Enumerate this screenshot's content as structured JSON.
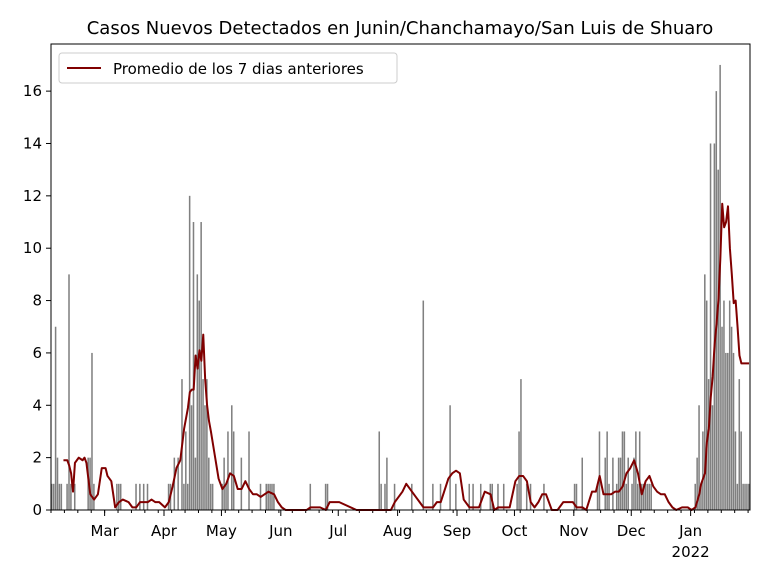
{
  "chart_data": {
    "type": "bar",
    "title": "Casos Nuevos Detectados en Junin/Chanchamayo/San Luis de Shuaro",
    "xlabel": "",
    "ylabel": "",
    "ylim": [
      0,
      17.8
    ],
    "yticks": [
      "0",
      "2",
      "4",
      "6",
      "8",
      "10",
      "12",
      "14",
      "16"
    ],
    "xtick_labels": [
      {
        "date": "2021-03-01",
        "label": "Mar"
      },
      {
        "date": "2021-04-01",
        "label": "Apr"
      },
      {
        "date": "2021-05-01",
        "label": "May"
      },
      {
        "date": "2021-06-01",
        "label": "Jun"
      },
      {
        "date": "2021-07-01",
        "label": "Jul"
      },
      {
        "date": "2021-08-01",
        "label": "Aug"
      },
      {
        "date": "2021-09-01",
        "label": "Sep"
      },
      {
        "date": "2021-10-01",
        "label": "Oct"
      },
      {
        "date": "2021-11-01",
        "label": "Nov"
      },
      {
        "date": "2021-12-01",
        "label": "Dec"
      },
      {
        "date": "2022-01-01",
        "label": "Jan"
      }
    ],
    "year_label": "2022",
    "x_start": "2021-02-01",
    "x_end": "2022-01-31",
    "grid": false,
    "legend_position": "top-left",
    "bar_color": "#808080",
    "line_color": "#800000",
    "series": [
      {
        "type": "bar",
        "x": [
          "2021-02-01",
          "2021-02-02",
          "2021-02-03",
          "2021-02-04",
          "2021-02-05",
          "2021-02-06",
          "2021-02-09",
          "2021-02-10",
          "2021-02-11",
          "2021-02-13",
          "2021-02-20",
          "2021-02-21",
          "2021-02-22",
          "2021-02-23",
          "2021-03-07",
          "2021-03-08",
          "2021-03-09",
          "2021-03-17",
          "2021-03-19",
          "2021-03-21",
          "2021-03-23",
          "2021-04-03",
          "2021-04-04",
          "2021-04-06",
          "2021-04-08",
          "2021-04-10",
          "2021-04-11",
          "2021-04-12",
          "2021-04-13",
          "2021-04-14",
          "2021-04-15",
          "2021-04-16",
          "2021-04-17",
          "2021-04-18",
          "2021-04-19",
          "2021-04-20",
          "2021-04-21",
          "2021-04-22",
          "2021-04-23",
          "2021-04-24",
          "2021-04-25",
          "2021-04-26",
          "2021-05-01",
          "2021-05-02",
          "2021-05-03",
          "2021-05-04",
          "2021-05-06",
          "2021-05-07",
          "2021-05-11",
          "2021-05-15",
          "2021-05-21",
          "2021-05-24",
          "2021-05-25",
          "2021-05-26",
          "2021-05-27",
          "2021-05-28",
          "2021-06-16",
          "2021-06-24",
          "2021-06-25",
          "2021-07-22",
          "2021-07-23",
          "2021-07-25",
          "2021-07-26",
          "2021-07-30",
          "2021-08-08",
          "2021-08-14",
          "2021-08-19",
          "2021-08-23",
          "2021-08-28",
          "2021-08-31",
          "2021-09-07",
          "2021-09-09",
          "2021-09-13",
          "2021-09-18",
          "2021-09-19",
          "2021-09-22",
          "2021-09-25",
          "2021-10-02",
          "2021-10-03",
          "2021-10-04",
          "2021-10-07",
          "2021-10-09",
          "2021-10-16",
          "2021-11-01",
          "2021-11-02",
          "2021-11-05",
          "2021-11-13",
          "2021-11-14",
          "2021-11-17",
          "2021-11-18",
          "2021-11-19",
          "2021-11-21",
          "2021-11-23",
          "2021-11-24",
          "2021-11-25",
          "2021-11-26",
          "2021-11-27",
          "2021-11-28",
          "2021-11-29",
          "2021-12-01",
          "2021-12-02",
          "2021-12-03",
          "2021-12-04",
          "2021-12-05",
          "2021-12-06",
          "2021-12-07",
          "2021-12-08",
          "2021-12-09",
          "2021-12-10",
          "2021-12-11",
          "2022-01-03",
          "2022-01-04",
          "2022-01-05",
          "2022-01-06",
          "2022-01-07",
          "2022-01-08",
          "2022-01-09",
          "2022-01-10",
          "2022-01-11",
          "2022-01-12",
          "2022-01-13",
          "2022-01-14",
          "2022-01-15",
          "2022-01-16",
          "2022-01-17",
          "2022-01-18",
          "2022-01-19",
          "2022-01-20",
          "2022-01-21",
          "2022-01-22",
          "2022-01-23",
          "2022-01-24",
          "2022-01-25",
          "2022-01-26",
          "2022-01-27",
          "2022-01-28",
          "2022-01-29",
          "2022-01-30",
          "2022-01-31"
        ],
        "values": [
          1,
          1,
          7,
          2,
          1,
          1,
          1,
          9,
          1,
          1,
          2,
          2,
          6,
          1,
          1,
          1,
          1,
          1,
          1,
          1,
          1,
          1,
          1,
          2,
          2,
          5,
          1,
          3,
          1,
          12,
          4,
          11,
          2,
          9,
          8,
          11,
          5,
          4,
          5,
          2,
          1,
          1,
          1,
          2,
          1,
          3,
          4,
          3,
          2,
          3,
          1,
          1,
          1,
          1,
          1,
          1,
          1,
          1,
          1,
          3,
          1,
          1,
          2,
          1,
          1,
          8,
          1,
          1,
          4,
          1,
          1,
          1,
          1,
          1,
          1,
          1,
          1,
          1,
          3,
          5,
          1,
          1,
          1,
          1,
          1,
          2,
          1,
          3,
          2,
          3,
          1,
          2,
          1,
          2,
          2,
          3,
          3,
          1,
          2,
          1,
          2,
          3,
          1,
          3,
          1,
          1,
          1,
          1,
          1,
          1,
          1,
          2,
          4,
          1,
          3,
          9,
          8,
          5,
          14,
          4,
          14,
          16,
          13,
          17,
          7,
          8,
          6,
          6,
          8,
          7,
          6,
          3,
          1,
          5,
          3,
          1,
          1,
          1,
          1
        ]
      },
      {
        "type": "line",
        "name": "Promedio de los 7 dias anteriores",
        "x": [
          "2021-02-07",
          "2021-02-09",
          "2021-02-10",
          "2021-02-11",
          "2021-02-12",
          "2021-02-13",
          "2021-02-14",
          "2021-02-15",
          "2021-02-17",
          "2021-02-18",
          "2021-02-19",
          "2021-02-21",
          "2021-02-23",
          "2021-02-25",
          "2021-02-27",
          "2021-03-01",
          "2021-03-02",
          "2021-03-04",
          "2021-03-06",
          "2021-03-08",
          "2021-03-10",
          "2021-03-13",
          "2021-03-15",
          "2021-03-17",
          "2021-03-19",
          "2021-03-21",
          "2021-03-23",
          "2021-03-25",
          "2021-03-27",
          "2021-03-29",
          "2021-04-01",
          "2021-04-03",
          "2021-04-05",
          "2021-04-07",
          "2021-04-09",
          "2021-04-11",
          "2021-04-13",
          "2021-04-14",
          "2021-04-15",
          "2021-04-16",
          "2021-04-17",
          "2021-04-18",
          "2021-04-19",
          "2021-04-20",
          "2021-04-21",
          "2021-04-22",
          "2021-04-23",
          "2021-04-24",
          "2021-04-25",
          "2021-04-27",
          "2021-04-29",
          "2021-05-01",
          "2021-05-03",
          "2021-05-05",
          "2021-05-07",
          "2021-05-09",
          "2021-05-11",
          "2021-05-13",
          "2021-05-15",
          "2021-05-17",
          "2021-05-19",
          "2021-05-21",
          "2021-05-23",
          "2021-05-25",
          "2021-05-28",
          "2021-05-30",
          "2021-06-01",
          "2021-06-03",
          "2021-06-05",
          "2021-06-07",
          "2021-06-14",
          "2021-06-16",
          "2021-06-19",
          "2021-06-21",
          "2021-06-24",
          "2021-06-26",
          "2021-06-28",
          "2021-07-01",
          "2021-07-10",
          "2021-07-20",
          "2021-07-22",
          "2021-07-24",
          "2021-07-26",
          "2021-07-28",
          "2021-07-30",
          "2021-08-01",
          "2021-08-03",
          "2021-08-05",
          "2021-08-08",
          "2021-08-10",
          "2021-08-12",
          "2021-08-14",
          "2021-08-15",
          "2021-08-17",
          "2021-08-19",
          "2021-08-21",
          "2021-08-23",
          "2021-08-27",
          "2021-08-29",
          "2021-08-31",
          "2021-09-02",
          "2021-09-04",
          "2021-09-07",
          "2021-09-09",
          "2021-09-12",
          "2021-09-15",
          "2021-09-18",
          "2021-09-20",
          "2021-09-22",
          "2021-09-24",
          "2021-09-26",
          "2021-09-28",
          "2021-10-01",
          "2021-10-03",
          "2021-10-05",
          "2021-10-07",
          "2021-10-09",
          "2021-10-11",
          "2021-10-13",
          "2021-10-15",
          "2021-10-17",
          "2021-10-20",
          "2021-10-23",
          "2021-10-26",
          "2021-10-28",
          "2021-10-31",
          "2021-11-02",
          "2021-11-05",
          "2021-11-07",
          "2021-11-10",
          "2021-11-12",
          "2021-11-14",
          "2021-11-16",
          "2021-11-18",
          "2021-11-20",
          "2021-11-22",
          "2021-11-24",
          "2021-11-26",
          "2021-11-28",
          "2021-11-30",
          "2021-12-02",
          "2021-12-04",
          "2021-12-06",
          "2021-12-08",
          "2021-12-10",
          "2021-12-12",
          "2021-12-14",
          "2021-12-16",
          "2021-12-18",
          "2021-12-20",
          "2021-12-22",
          "2021-12-24",
          "2021-12-27",
          "2021-12-30",
          "2022-01-01",
          "2022-01-03",
          "2022-01-05",
          "2022-01-06",
          "2022-01-08",
          "2022-01-09",
          "2022-01-10",
          "2022-01-11",
          "2022-01-12",
          "2022-01-13",
          "2022-01-14",
          "2022-01-15",
          "2022-01-16",
          "2022-01-17",
          "2022-01-18",
          "2022-01-19",
          "2022-01-20",
          "2022-01-21",
          "2022-01-22",
          "2022-01-23",
          "2022-01-24",
          "2022-01-25",
          "2022-01-26",
          "2022-01-27",
          "2022-01-28",
          "2022-01-29",
          "2022-01-30",
          "2022-01-31"
        ],
        "values": [
          1.9,
          1.9,
          1.7,
          1.4,
          0.7,
          1.8,
          1.9,
          2.0,
          1.9,
          2.0,
          1.8,
          0.6,
          0.4,
          0.6,
          1.6,
          1.6,
          1.3,
          1.1,
          0.1,
          0.3,
          0.4,
          0.3,
          0.1,
          0.1,
          0.3,
          0.3,
          0.3,
          0.4,
          0.3,
          0.3,
          0.1,
          0.3,
          0.9,
          1.6,
          1.9,
          3.1,
          3.9,
          4.5,
          4.6,
          4.6,
          5.9,
          5.4,
          6.1,
          5.7,
          6.7,
          5.0,
          4.0,
          3.4,
          3.0,
          2.1,
          1.2,
          0.8,
          1.0,
          1.4,
          1.3,
          0.8,
          0.8,
          1.1,
          0.8,
          0.6,
          0.6,
          0.5,
          0.6,
          0.7,
          0.6,
          0.3,
          0.1,
          0.0,
          0.0,
          0.0,
          0.0,
          0.1,
          0.1,
          0.1,
          0.0,
          0.3,
          0.3,
          0.3,
          0.0,
          0.0,
          0.0,
          0.0,
          0.0,
          0.0,
          0.3,
          0.5,
          0.7,
          1.0,
          0.7,
          0.5,
          0.3,
          0.1,
          0.1,
          0.1,
          0.1,
          0.3,
          0.3,
          1.2,
          1.4,
          1.5,
          1.4,
          0.4,
          0.1,
          0.1,
          0.1,
          0.7,
          0.6,
          0.0,
          0.1,
          0.1,
          0.1,
          0.1,
          1.1,
          1.3,
          1.3,
          1.1,
          0.3,
          0.1,
          0.3,
          0.6,
          0.6,
          0.0,
          0.0,
          0.3,
          0.3,
          0.3,
          0.1,
          0.1,
          0.0,
          0.7,
          0.7,
          1.3,
          0.6,
          0.6,
          0.6,
          0.7,
          0.7,
          0.9,
          1.4,
          1.6,
          1.9,
          1.4,
          0.6,
          1.1,
          1.3,
          0.9,
          0.7,
          0.6,
          0.6,
          0.3,
          0.1,
          0.0,
          0.1,
          0.1,
          0.0,
          0.1,
          0.6,
          1.0,
          1.4,
          2.6,
          3.1,
          4.3,
          5.1,
          6.3,
          7.1,
          8.0,
          9.6,
          11.7,
          10.8,
          11.0,
          11.6,
          10.0,
          9.0,
          7.9,
          8.0,
          7.0,
          5.9,
          5.6,
          5.6,
          5.6,
          5.6,
          5.6
        ]
      }
    ]
  }
}
